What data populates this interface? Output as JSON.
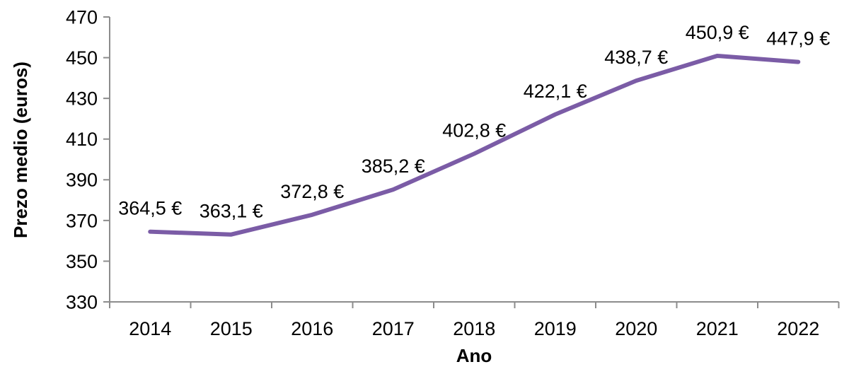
{
  "chart_data": {
    "type": "line",
    "categories": [
      "2014",
      "2015",
      "2016",
      "2017",
      "2018",
      "2019",
      "2020",
      "2021",
      "2022"
    ],
    "series": [
      {
        "name": "Prezo medio",
        "values": [
          364.5,
          363.1,
          372.8,
          385.2,
          402.8,
          422.1,
          438.7,
          450.9,
          447.9
        ]
      }
    ],
    "point_labels": [
      "364,5 €",
      "363,1 €",
      "372,8 €",
      "385,2 €",
      "402,8 €",
      "422,1 €",
      "438,7 €",
      "450,9 €",
      "447,9 €"
    ],
    "title": "",
    "xlabel": "Ano",
    "ylabel": "Prezo medio (euros)",
    "ylim": [
      330,
      470
    ],
    "yticks": [
      330,
      350,
      370,
      390,
      410,
      430,
      450,
      470
    ],
    "grid": false,
    "legend": "none",
    "colors": {
      "line": "#7B5CA6",
      "axis": "#8C8C8C",
      "text": "#000000",
      "background": "#FFFFFF"
    }
  }
}
